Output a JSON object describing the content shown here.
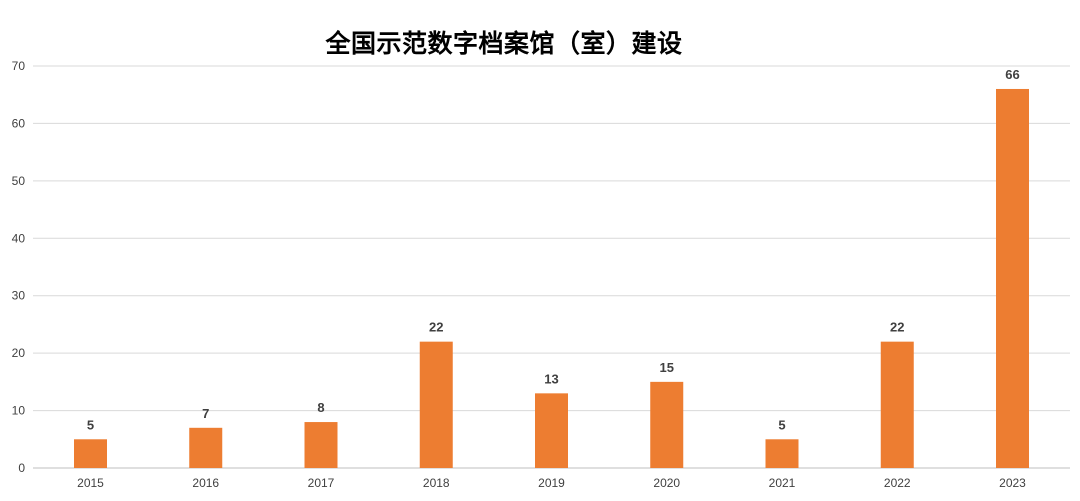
{
  "chart_data": {
    "type": "bar",
    "title": "全国示范数字档案馆（室）建设",
    "xlabel": "",
    "ylabel": "",
    "categories": [
      "2015",
      "2016",
      "2017",
      "2018",
      "2019",
      "2020",
      "2021",
      "2022",
      "2023"
    ],
    "values": [
      5,
      7,
      8,
      22,
      13,
      15,
      5,
      22,
      66
    ],
    "ylim": [
      0,
      70
    ],
    "yticks": [
      0,
      10,
      20,
      30,
      40,
      50,
      60,
      70
    ],
    "grid": true,
    "legend": "none",
    "data_labels": true,
    "colors": {
      "bar": "#ED7D31",
      "grid": "#D9D9D9",
      "text": "#404040"
    }
  }
}
